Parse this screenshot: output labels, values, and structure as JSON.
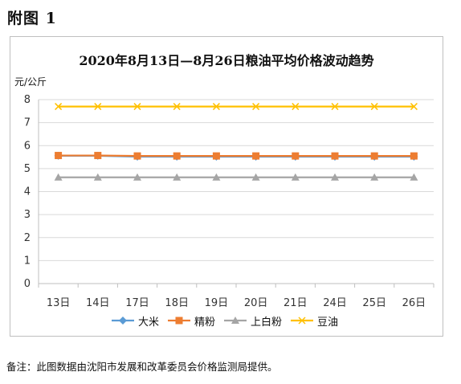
{
  "figure_label": "附图 1",
  "unit_label": "元/公斤",
  "note": "备注：此图数据由沈阳市发展和改革委员会价格监测局提供。",
  "chart_data": {
    "type": "line",
    "title": "2020年8月13日—8月26日粮油平均价格波动趋势",
    "ylabel": "元/公斤",
    "xlabel": "",
    "categories": [
      "13日",
      "14日",
      "17日",
      "18日",
      "19日",
      "20日",
      "21日",
      "24日",
      "25日",
      "26日"
    ],
    "ylim": [
      0,
      8
    ],
    "yticks": [
      0,
      1,
      2,
      3,
      4,
      5,
      6,
      7,
      8
    ],
    "grid": true,
    "legend": "bottom",
    "series": [
      {
        "name": "大米",
        "color": "#5b9bd5",
        "marker": "diamond",
        "values": [
          5.56,
          5.56,
          5.52,
          5.52,
          5.52,
          5.52,
          5.52,
          5.52,
          5.52,
          5.52
        ]
      },
      {
        "name": "精粉",
        "color": "#ed7d31",
        "marker": "square",
        "values": [
          5.57,
          5.57,
          5.55,
          5.55,
          5.55,
          5.55,
          5.55,
          5.55,
          5.55,
          5.55
        ]
      },
      {
        "name": "上白粉",
        "color": "#a5a5a5",
        "marker": "triangle",
        "values": [
          4.62,
          4.62,
          4.62,
          4.62,
          4.62,
          4.62,
          4.62,
          4.62,
          4.62,
          4.62
        ]
      },
      {
        "name": "豆油",
        "color": "#ffc000",
        "marker": "x",
        "values": [
          7.7,
          7.7,
          7.7,
          7.7,
          7.7,
          7.7,
          7.7,
          7.7,
          7.7,
          7.7
        ]
      }
    ]
  }
}
